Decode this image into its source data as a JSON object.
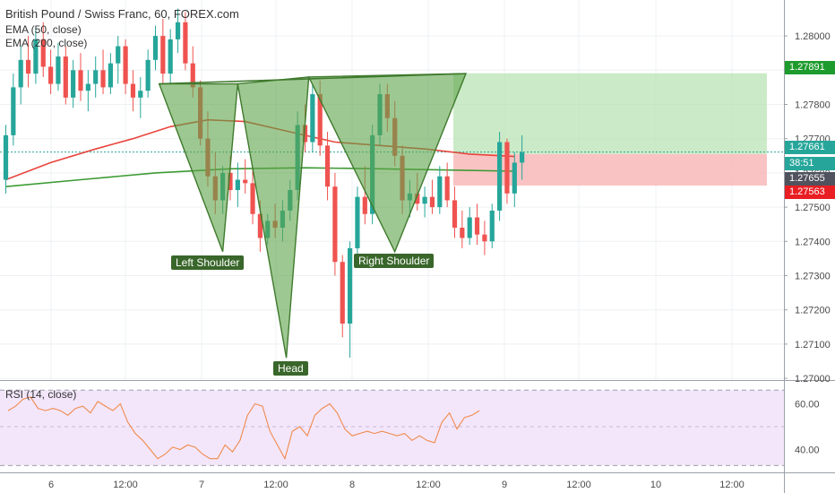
{
  "legend": {
    "title": "British Pound / Swiss Franc, 60, FOREX.com",
    "ema50": "EMA (50, close)",
    "ema200": "EMA (200, close)",
    "rsi": "RSI (14, close)"
  },
  "price_tags": {
    "target": "1.27891",
    "current": "1.27661",
    "timer": "38:51",
    "entry": "1.27655",
    "stop": "1.27563"
  },
  "colors": {
    "up_candle": "#26a69a",
    "down_candle": "#ef5350",
    "ema50": "#e8453c",
    "ema200": "#3c9a33",
    "pattern_fill": "#5ea34a",
    "rsi_line": "#f08a4b",
    "rsi_band": "#f3e6fb",
    "target_zone": "#b9e3b4",
    "stop_zone": "#f9b8b8",
    "target_tag": "#1e9b2d",
    "current_tag": "#26a69a",
    "entry_tag": "#50535e",
    "stop_tag": "#e91e23"
  },
  "chart_data": [
    {
      "type": "candlestick",
      "symbol": "British Pound / Swiss Franc, 60, FOREX.com",
      "x_ticks": [
        "6",
        "12:00",
        "7",
        "12:00",
        "8",
        "12:00",
        "9",
        "12:00",
        "10",
        "12:00"
      ],
      "y_ticks": [
        "1.28000",
        "1.27900",
        "1.27800",
        "1.27700",
        "1.27600",
        "1.27500",
        "1.27400",
        "1.27300",
        "1.27200",
        "1.27100",
        "1.27000"
      ],
      "ylim": [
        1.26995,
        1.28105
      ],
      "n_bars": 84,
      "candles": [
        [
          1.2758,
          1.2774,
          1.2754,
          1.2771
        ],
        [
          1.2771,
          1.2789,
          1.2768,
          1.2785
        ],
        [
          1.2785,
          1.2797,
          1.278,
          1.2793
        ],
        [
          1.2793,
          1.28,
          1.2785,
          1.2789
        ],
        [
          1.2789,
          1.2803,
          1.2786,
          1.2799
        ],
        [
          1.2799,
          1.2804,
          1.2788,
          1.2791
        ],
        [
          1.2791,
          1.2796,
          1.2783,
          1.2786
        ],
        [
          1.2786,
          1.2798,
          1.2784,
          1.2794
        ],
        [
          1.2794,
          1.2797,
          1.278,
          1.2782
        ],
        [
          1.2782,
          1.2793,
          1.2779,
          1.279
        ],
        [
          1.279,
          1.2795,
          1.2781,
          1.2784
        ],
        [
          1.2784,
          1.279,
          1.2778,
          1.2786
        ],
        [
          1.2786,
          1.2794,
          1.2782,
          1.279
        ],
        [
          1.279,
          1.2796,
          1.2783,
          1.2785
        ],
        [
          1.2785,
          1.2795,
          1.2783,
          1.2792
        ],
        [
          1.2792,
          1.28,
          1.2786,
          1.2797
        ],
        [
          1.2797,
          1.2799,
          1.2783,
          1.2786
        ],
        [
          1.2786,
          1.279,
          1.2778,
          1.2782
        ],
        [
          1.2782,
          1.2788,
          1.2776,
          1.2784
        ],
        [
          1.2784,
          1.2796,
          1.2782,
          1.2793
        ],
        [
          1.2793,
          1.2803,
          1.279,
          1.28
        ],
        [
          1.28,
          1.2805,
          1.2786,
          1.2789
        ],
        [
          1.2789,
          1.2802,
          1.2786,
          1.2799
        ],
        [
          1.2799,
          1.2808,
          1.2795,
          1.2804
        ],
        [
          1.2804,
          1.2807,
          1.279,
          1.2792
        ],
        [
          1.2792,
          1.2797,
          1.2782,
          1.2785
        ],
        [
          1.2785,
          1.2787,
          1.2768,
          1.277
        ],
        [
          1.277,
          1.2778,
          1.2756,
          1.2759
        ],
        [
          1.2759,
          1.2766,
          1.2748,
          1.2752
        ],
        [
          1.2752,
          1.2762,
          1.2748,
          1.276
        ],
        [
          1.276,
          1.2765,
          1.2752,
          1.2755
        ],
        [
          1.2755,
          1.2763,
          1.275,
          1.2758
        ],
        [
          1.2758,
          1.2764,
          1.2754,
          1.2757
        ],
        [
          1.2757,
          1.2762,
          1.2745,
          1.2748
        ],
        [
          1.2748,
          1.2752,
          1.2737,
          1.2741
        ],
        [
          1.2741,
          1.2748,
          1.2739,
          1.2746
        ],
        [
          1.2746,
          1.2751,
          1.2741,
          1.2744
        ],
        [
          1.2744,
          1.2752,
          1.274,
          1.2749
        ],
        [
          1.2749,
          1.2758,
          1.2746,
          1.2755
        ],
        [
          1.2755,
          1.2778,
          1.2752,
          1.2774
        ],
        [
          1.2774,
          1.278,
          1.2766,
          1.2769
        ],
        [
          1.2769,
          1.2786,
          1.2766,
          1.2783
        ],
        [
          1.2783,
          1.2787,
          1.2765,
          1.2768
        ],
        [
          1.2768,
          1.2772,
          1.2752,
          1.2756
        ],
        [
          1.2756,
          1.276,
          1.273,
          1.2734
        ],
        [
          1.2734,
          1.2736,
          1.2712,
          1.2716
        ],
        [
          1.2716,
          1.274,
          1.2706,
          1.2738
        ],
        [
          1.2738,
          1.2756,
          1.2734,
          1.2753
        ],
        [
          1.2753,
          1.2762,
          1.2745,
          1.2748
        ],
        [
          1.2748,
          1.2774,
          1.2745,
          1.2771
        ],
        [
          1.2771,
          1.2786,
          1.2768,
          1.2783
        ],
        [
          1.2783,
          1.2786,
          1.2772,
          1.2776
        ],
        [
          1.2776,
          1.2781,
          1.2762,
          1.2765
        ],
        [
          1.2765,
          1.2768,
          1.2748,
          1.2752
        ],
        [
          1.2752,
          1.2758,
          1.2747,
          1.2754
        ],
        [
          1.2754,
          1.276,
          1.2749,
          1.2751
        ],
        [
          1.2751,
          1.2756,
          1.2747,
          1.2753
        ],
        [
          1.2753,
          1.2758,
          1.2748,
          1.275
        ],
        [
          1.275,
          1.2762,
          1.2748,
          1.2759
        ],
        [
          1.2759,
          1.2763,
          1.275,
          1.2752
        ],
        [
          1.2752,
          1.2756,
          1.2741,
          1.2744
        ],
        [
          1.2744,
          1.2749,
          1.2738,
          1.2741
        ],
        [
          1.2741,
          1.275,
          1.2739,
          1.2747
        ],
        [
          1.2747,
          1.2751,
          1.2739,
          1.2742
        ],
        [
          1.2742,
          1.2746,
          1.2736,
          1.274
        ],
        [
          1.274,
          1.2751,
          1.2738,
          1.2749
        ],
        [
          1.2749,
          1.2772,
          1.2746,
          1.2769
        ],
        [
          1.2769,
          1.277,
          1.2751,
          1.2754
        ],
        [
          1.2754,
          1.2766,
          1.275,
          1.2763
        ],
        [
          1.2763,
          1.2771,
          1.2758,
          1.2766
        ]
      ],
      "ema50": [
        [
          0,
          1.2758
        ],
        [
          6,
          1.2763
        ],
        [
          12,
          1.2767
        ],
        [
          17,
          1.277
        ],
        [
          22,
          1.27735
        ],
        [
          27,
          1.27755
        ],
        [
          32,
          1.2775
        ],
        [
          38,
          1.2772
        ],
        [
          44,
          1.2769
        ],
        [
          50,
          1.2768
        ],
        [
          56,
          1.2767
        ],
        [
          62,
          1.27655
        ],
        [
          68,
          1.27648
        ]
      ],
      "ema200": [
        [
          0,
          1.2756
        ],
        [
          10,
          1.2758
        ],
        [
          20,
          1.276
        ],
        [
          30,
          1.27612
        ],
        [
          40,
          1.27615
        ],
        [
          50,
          1.27612
        ],
        [
          60,
          1.27608
        ],
        [
          68,
          1.27605
        ]
      ],
      "pattern": {
        "points": [
          [
            1.2786,
            20.5
          ],
          [
            1.2737,
            29.0
          ],
          [
            1.2786,
            31.0
          ],
          [
            1.2706,
            37.5
          ],
          [
            1.2788,
            40.5
          ],
          [
            1.2737,
            52.0
          ],
          [
            1.2789,
            61.5
          ]
        ],
        "labels": [
          "Left Shoulder",
          "Head",
          "Right Shoulder"
        ]
      },
      "position": {
        "target": 1.27891,
        "entry": 1.27655,
        "stop": 1.27563,
        "current": 1.27661
      }
    },
    {
      "type": "line",
      "title": "RSI (14, close)",
      "y_ticks": [
        "60.00",
        "40.00"
      ],
      "ylim": [
        30,
        70
      ],
      "band": [
        33,
        66
      ],
      "values": [
        57,
        59,
        62,
        63,
        58,
        57,
        58,
        57,
        55,
        58,
        59,
        56,
        61,
        59,
        57,
        60,
        52,
        47,
        44,
        40,
        36,
        38,
        41,
        40,
        42,
        41,
        38,
        36,
        36,
        42,
        39,
        44,
        55,
        60,
        59,
        48,
        42,
        36,
        48,
        50,
        46,
        55,
        58,
        60,
        56,
        49,
        46,
        47,
        48,
        47,
        48,
        47,
        46,
        47,
        44,
        46,
        44,
        43,
        52,
        56,
        49,
        54,
        55,
        57
      ]
    }
  ]
}
